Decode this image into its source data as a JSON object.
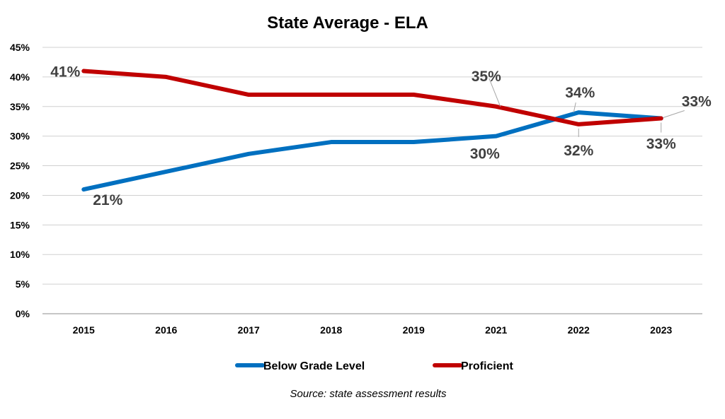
{
  "chart_data": {
    "type": "line",
    "title": "State Average - ELA",
    "source": "Source: state assessment results",
    "categories": [
      "2015",
      "2016",
      "2017",
      "2018",
      "2019",
      "2021",
      "2022",
      "2023"
    ],
    "ylim": [
      0,
      45
    ],
    "yticks": [
      "0%",
      "5%",
      "10%",
      "15%",
      "20%",
      "25%",
      "30%",
      "35%",
      "40%",
      "45%"
    ],
    "grid": true,
    "legend_position": "bottom",
    "series": [
      {
        "name": "Below Grade Level",
        "color": "#0070C0",
        "values": [
          21,
          24,
          27,
          29,
          29,
          30,
          34,
          33
        ],
        "labels": {
          "0": "21%",
          "5": "30%",
          "6": "34%",
          "7": "33%"
        }
      },
      {
        "name": "Proficient",
        "color": "#C00000",
        "values": [
          41,
          40,
          37,
          37,
          37,
          35,
          32,
          33
        ],
        "labels": {
          "0": "41%",
          "5": "35%",
          "6": "32%",
          "7": "33%"
        }
      }
    ]
  }
}
